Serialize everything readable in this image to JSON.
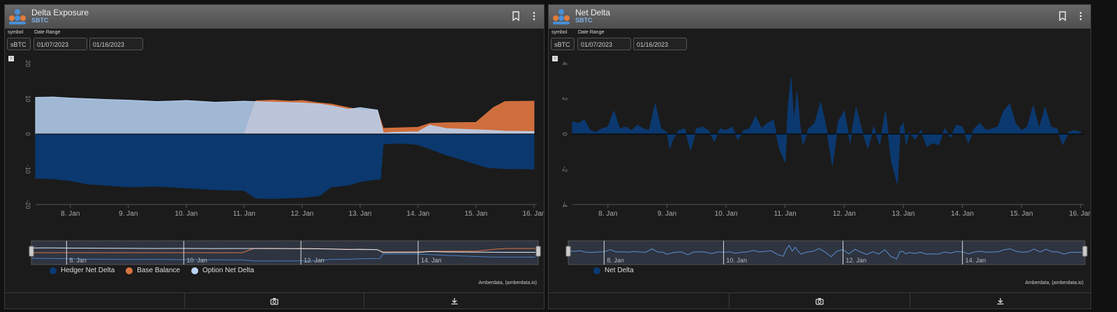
{
  "panels": [
    {
      "title": "Delta Exposure",
      "subtitle": "SBTC",
      "symbol_label": "symbol",
      "symbol_value": "sBTC",
      "date_range_label": "Date Range",
      "date_from": "01/07/2023",
      "date_to": "01/16/2023",
      "credit": "Amberdata, (amberdata.io)",
      "icons": {
        "bookmark": "bookmark-icon",
        "menu": "kebab-menu-icon",
        "camera": "camera-icon",
        "download": "download-icon"
      },
      "legend": [
        {
          "label": "Hedger Net Delta",
          "color": "#0b3a73"
        },
        {
          "label": "Base Balance",
          "color": "#d9733f"
        },
        {
          "label": "Option Net Delta",
          "color": "#b8d4f4"
        }
      ]
    },
    {
      "title": "Net Delta",
      "subtitle": "SBTC",
      "symbol_label": "symbol",
      "symbol_value": "sBTC",
      "date_range_label": "Date Range",
      "date_from": "01/07/2023",
      "date_to": "01/16/2023",
      "credit": "Amberdata, (amberdata.io)",
      "icons": {
        "bookmark": "bookmark-icon",
        "menu": "kebab-menu-icon",
        "camera": "camera-icon",
        "download": "download-icon"
      },
      "legend": [
        {
          "label": "Net Delta",
          "color": "#0b3a73"
        }
      ]
    }
  ],
  "chart_data": [
    {
      "type": "area",
      "x_ticks": [
        "8. Jan",
        "9. Jan",
        "10. Jan",
        "11. Jan",
        "12. Jan",
        "13. Jan",
        "14. Jan",
        "15. Jan",
        "16. Jan"
      ],
      "x_tick_days": [
        8,
        9,
        10,
        11,
        12,
        13,
        14,
        15,
        16
      ],
      "xlim": [
        7.4,
        16.05
      ],
      "y_ticks": [
        "20",
        "10",
        "0",
        "-10",
        "-20"
      ],
      "ylim": [
        -20,
        20
      ],
      "navigator_ticks": [
        "8. Jan",
        "10. Jan",
        "12. Jan",
        "14. Jan"
      ],
      "navigator_tick_days": [
        8,
        10,
        12,
        14
      ],
      "series": [
        {
          "name": "Hedger Net Delta",
          "x": [
            7.4,
            7.7,
            8.0,
            8.3,
            8.6,
            9.0,
            9.5,
            10.0,
            10.5,
            11.0,
            11.2,
            11.5,
            12.0,
            12.3,
            12.5,
            12.8,
            13.0,
            13.2,
            13.35,
            13.4,
            13.6,
            13.8,
            14.0,
            14.5,
            15.0,
            15.2,
            15.5,
            16.0
          ],
          "y": [
            -12.5,
            -12.7,
            -13.2,
            -14.2,
            -14.5,
            -15.0,
            -14.8,
            -15.3,
            -15.8,
            -16.0,
            -18.2,
            -18.3,
            -18.0,
            -17.5,
            -15.0,
            -14.5,
            -13.5,
            -13.0,
            -12.8,
            -2.8,
            -2.6,
            -2.7,
            -3.0,
            -6.0,
            -8.5,
            -9.5,
            -9.8,
            -9.9
          ]
        },
        {
          "name": "Base Balance",
          "x": [
            7.4,
            8.0,
            9.0,
            10.0,
            11.0,
            11.2,
            11.5,
            11.8,
            12.0,
            12.3,
            12.5,
            13.0,
            13.3,
            13.4,
            13.6,
            14.0,
            14.2,
            14.5,
            15.0,
            15.3,
            15.5,
            16.0
          ],
          "y": [
            0.0,
            0.0,
            0.0,
            0.0,
            0.0,
            9.4,
            9.6,
            9.3,
            9.5,
            8.8,
            8.5,
            6.8,
            6.7,
            1.6,
            1.7,
            1.9,
            3.0,
            3.2,
            3.3,
            7.5,
            9.2,
            9.3
          ]
        },
        {
          "name": "Option Net Delta",
          "x": [
            7.4,
            7.7,
            8.0,
            8.3,
            8.6,
            9.0,
            9.5,
            10.0,
            10.5,
            11.0,
            11.5,
            12.0,
            12.3,
            12.5,
            12.8,
            13.0,
            13.3,
            13.4,
            13.6,
            14.0,
            14.2,
            14.5,
            15.0,
            15.3,
            15.5,
            16.0
          ],
          "y": [
            10.4,
            10.5,
            10.2,
            10.0,
            9.8,
            9.6,
            9.2,
            9.5,
            9.0,
            9.3,
            9.0,
            8.8,
            8.5,
            8.0,
            7.0,
            7.5,
            6.8,
            0.3,
            0.5,
            0.6,
            2.5,
            1.5,
            1.2,
            1.0,
            0.8,
            0.7
          ]
        }
      ]
    },
    {
      "type": "area",
      "x_ticks": [
        "8. Jan",
        "9. Jan",
        "10. Jan",
        "11. Jan",
        "12. Jan",
        "13. Jan",
        "14. Jan",
        "15. Jan",
        "16. Jan"
      ],
      "x_tick_days": [
        8,
        9,
        10,
        11,
        12,
        13,
        14,
        15,
        16
      ],
      "xlim": [
        7.4,
        16.05
      ],
      "y_ticks": [
        "4",
        "2",
        "0",
        "-2",
        "-4"
      ],
      "ylim": [
        -4,
        4
      ],
      "navigator_ticks": [
        "8. Jan",
        "10. Jan",
        "12. Jan",
        "14. Jan"
      ],
      "navigator_tick_days": [
        8,
        10,
        12,
        14
      ],
      "series": [
        {
          "name": "Net Delta",
          "x": [
            7.4,
            7.5,
            7.6,
            7.7,
            7.8,
            7.9,
            8.0,
            8.1,
            8.2,
            8.3,
            8.4,
            8.5,
            8.6,
            8.7,
            8.8,
            8.9,
            9.0,
            9.05,
            9.1,
            9.2,
            9.3,
            9.4,
            9.5,
            9.6,
            9.7,
            9.8,
            9.9,
            10.0,
            10.1,
            10.2,
            10.3,
            10.4,
            10.5,
            10.6,
            10.7,
            10.8,
            10.9,
            11.0,
            11.05,
            11.1,
            11.15,
            11.2,
            11.25,
            11.3,
            11.4,
            11.5,
            11.6,
            11.7,
            11.8,
            11.9,
            12.0,
            12.1,
            12.2,
            12.3,
            12.4,
            12.5,
            12.6,
            12.7,
            12.8,
            12.9,
            12.95,
            13.0,
            13.05,
            13.1,
            13.2,
            13.3,
            13.4,
            13.5,
            13.6,
            13.7,
            13.8,
            13.9,
            14.0,
            14.1,
            14.2,
            14.3,
            14.4,
            14.5,
            14.6,
            14.7,
            14.8,
            14.9,
            15.0,
            15.1,
            15.2,
            15.3,
            15.4,
            15.5,
            15.6,
            15.7,
            15.8,
            15.9,
            16.0
          ],
          "y": [
            0.7,
            0.6,
            0.8,
            0.2,
            0.1,
            0.3,
            0.4,
            1.3,
            0.3,
            0.4,
            0.2,
            0.5,
            0.3,
            0.2,
            1.7,
            0.3,
            0.1,
            -0.8,
            -0.3,
            0.2,
            0.3,
            -0.9,
            0.3,
            0.4,
            0.2,
            -0.4,
            0.3,
            0.2,
            0.4,
            -0.3,
            0.2,
            0.3,
            1.0,
            0.3,
            0.6,
            0.8,
            -0.8,
            -1.6,
            1.5,
            3.2,
            0.6,
            2.4,
            0.5,
            -0.6,
            0.3,
            0.6,
            1.8,
            0.3,
            -1.8,
            0.7,
            1.3,
            -0.5,
            1.5,
            0.2,
            -0.8,
            0.4,
            -0.6,
            1.3,
            -1.6,
            -2.8,
            0.4,
            0.6,
            -0.6,
            0.1,
            -0.3,
            0.2,
            -0.7,
            -0.5,
            -0.6,
            0.3,
            -0.2,
            0.5,
            0.4,
            -0.5,
            0.3,
            0.6,
            0.2,
            0.3,
            0.4,
            1.3,
            1.7,
            0.6,
            0.2,
            0.4,
            1.6,
            0.3,
            1.5,
            0.4,
            0.3,
            -0.6,
            0.1,
            0.2,
            0.1
          ]
        }
      ]
    }
  ]
}
